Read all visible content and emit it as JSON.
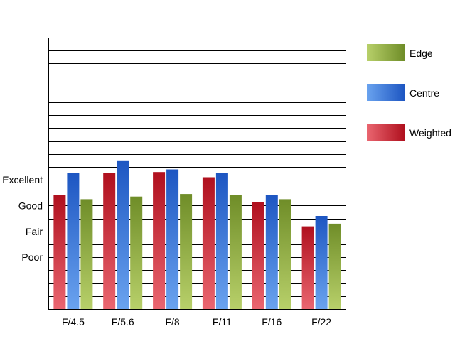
{
  "chart_data": {
    "type": "bar",
    "title": "",
    "xlabel": "",
    "ylabel": "",
    "categories": [
      "F/4.5",
      "F/5.6",
      "F/8",
      "F/11",
      "F/16",
      "F/22"
    ],
    "y_tick_labels": [
      {
        "value": 1,
        "label": "Poor"
      },
      {
        "value": 2,
        "label": "Fair"
      },
      {
        "value": 3,
        "label": "Good"
      },
      {
        "value": 4,
        "label": "Excellent"
      }
    ],
    "ylim": [
      -1,
      9.5
    ],
    "grid": true,
    "legend_position": "right",
    "series": [
      {
        "name": "Weighted",
        "color_dark": "#b0101e",
        "color_light": "#ea6670",
        "values": [
          3.4,
          4.25,
          4.3,
          4.1,
          3.15,
          2.2
        ]
      },
      {
        "name": "Centre",
        "color_dark": "#1d56c2",
        "color_light": "#6aa3ef",
        "values": [
          4.25,
          4.75,
          4.4,
          4.25,
          3.4,
          2.6
        ]
      },
      {
        "name": "Edge",
        "color_dark": "#6f8d28",
        "color_light": "#b8d06a",
        "values": [
          3.25,
          3.35,
          3.45,
          3.4,
          3.25,
          2.3
        ]
      }
    ],
    "legend_order": [
      "Edge",
      "Centre",
      "Weighted"
    ]
  }
}
